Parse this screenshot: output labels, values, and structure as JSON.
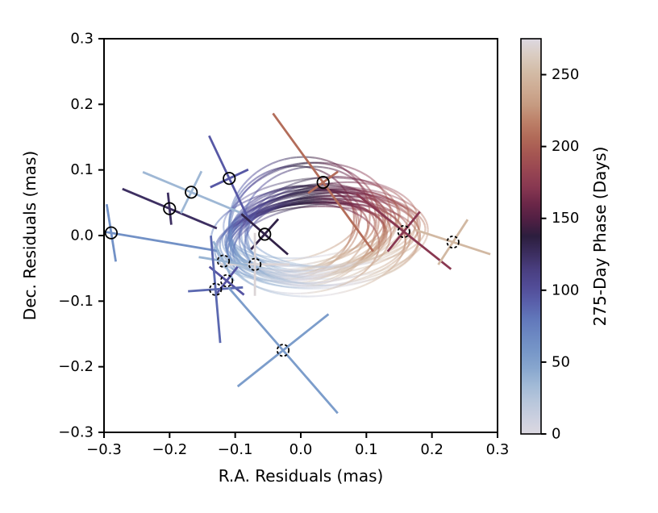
{
  "figure": {
    "background": "#ffffff",
    "axis_color": "#000000"
  },
  "chart_data": {
    "type": "scatter",
    "title": "",
    "xlabel": "R.A. Residuals (mas)",
    "ylabel": "Dec. Residuals (mas)",
    "units": "mas",
    "xlim": [
      -0.3,
      0.3
    ],
    "ylim": [
      -0.3,
      0.3
    ],
    "grid": false,
    "x_ticks": [
      -0.3,
      -0.2,
      -0.1,
      0.0,
      0.1,
      0.2,
      0.3
    ],
    "x_tick_labels": [
      "−0.3",
      "−0.2",
      "−0.1",
      "0.0",
      "0.1",
      "0.2",
      "0.3"
    ],
    "y_ticks": [
      -0.3,
      -0.2,
      -0.1,
      0.0,
      0.1,
      0.2,
      0.3
    ],
    "y_tick_labels": [
      "−0.3",
      "−0.2",
      "−0.1",
      "0.0",
      "0.1",
      "0.2",
      "0.3"
    ],
    "colorbar": {
      "label": "275-Day Phase (Days)",
      "min": 0,
      "max": 275,
      "ticks": [
        0,
        50,
        100,
        150,
        200,
        250
      ],
      "tick_labels": [
        "0",
        "50",
        "100",
        "150",
        "200",
        "250"
      ],
      "colormap": "twilight",
      "stops": [
        [
          0.0,
          "#dcd8e1"
        ],
        [
          0.05,
          "#c6cdde"
        ],
        [
          0.1,
          "#b0c3da"
        ],
        [
          0.14,
          "#97b3d3"
        ],
        [
          0.18,
          "#7fa0cc"
        ],
        [
          0.24,
          "#6e8cc4"
        ],
        [
          0.3,
          "#5f74b8"
        ],
        [
          0.36,
          "#544f9f"
        ],
        [
          0.43,
          "#473a77"
        ],
        [
          0.48,
          "#32234a"
        ],
        [
          0.5,
          "#2c1e3e"
        ],
        [
          0.52,
          "#3d1e42"
        ],
        [
          0.55,
          "#571f43"
        ],
        [
          0.6,
          "#762b4b"
        ],
        [
          0.63,
          "#8c3a52"
        ],
        [
          0.68,
          "#9d4b52"
        ],
        [
          0.73,
          "#ab5f52"
        ],
        [
          0.78,
          "#ba7a62"
        ],
        [
          0.83,
          "#c59a7f"
        ],
        [
          0.88,
          "#cfae96"
        ],
        [
          0.91,
          "#d2b9a3"
        ],
        [
          0.95,
          "#d9cabb"
        ],
        [
          1.0,
          "#dcd8e1"
        ]
      ]
    },
    "points": [
      {
        "ra": -0.289,
        "dec": 0.004,
        "phase_days": 62,
        "marker": "circle-solid",
        "error_axes": [
          {
            "angle_deg_screen": 81,
            "half_len_mas": 0.0443
          },
          {
            "angle_deg_screen": 9.6,
            "half_len_mas": 0.167
          }
        ]
      },
      {
        "ra": -0.2,
        "dec": 0.041,
        "phase_days": 125,
        "marker": "circle-solid",
        "error_axes": [
          {
            "angle_deg_screen": 22.7,
            "half_len_mas": 0.078
          },
          {
            "angle_deg_screen": 84,
            "half_len_mas": 0.0246
          }
        ]
      },
      {
        "ra": -0.167,
        "dec": 0.066,
        "phase_days": 35,
        "marker": "circle-solid",
        "error_axes": [
          {
            "angle_deg_screen": 22.6,
            "half_len_mas": 0.08
          },
          {
            "angle_deg_screen": 116,
            "half_len_mas": 0.0357
          }
        ]
      },
      {
        "ra": -0.109,
        "dec": 0.087,
        "phase_days": 95,
        "marker": "circle-solid",
        "error_axes": [
          {
            "angle_deg_screen": 64.7,
            "half_len_mas": 0.072
          },
          {
            "angle_deg_screen": -25,
            "half_len_mas": 0.032
          }
        ]
      },
      {
        "ra": 0.034,
        "dec": 0.081,
        "phase_days": 208,
        "marker": "circle-solid",
        "error_axes": [
          {
            "angle_deg_screen": 54,
            "half_len_mas": 0.13
          },
          {
            "angle_deg_screen": -36,
            "half_len_mas": 0.028
          }
        ]
      },
      {
        "ra": -0.055,
        "dec": 0.002,
        "phase_days": 133,
        "marker": "circle-solid",
        "error_axes": [
          {
            "angle_deg_screen": 41,
            "half_len_mas": 0.047
          },
          {
            "angle_deg_screen": 132,
            "half_len_mas": 0.031
          }
        ]
      },
      {
        "ra": 0.157,
        "dec": 0.006,
        "phase_days": 172,
        "marker": "circle-dashed",
        "error_axes": [
          {
            "angle_deg_screen": 38.5,
            "half_len_mas": 0.092
          },
          {
            "angle_deg_screen": 129,
            "half_len_mas": 0.039
          }
        ]
      },
      {
        "ra": 0.232,
        "dec": -0.01,
        "phase_days": 250,
        "marker": "circle-dashed",
        "error_axes": [
          {
            "angle_deg_screen": 123,
            "half_len_mas": 0.041
          },
          {
            "angle_deg_screen": 18,
            "half_len_mas": 0.06
          }
        ]
      },
      {
        "ra": -0.07,
        "dec": -0.044,
        "phase_days": 271,
        "marker": "circle-dashed",
        "error_axes": [
          {
            "angle_deg_screen": 90,
            "half_len_mas": 0.048
          },
          {
            "angle_deg_screen": 0,
            "half_len_mas": 0.053
          }
        ]
      },
      {
        "ra": -0.118,
        "dec": -0.039,
        "phase_days": 38,
        "marker": "circle-dashed",
        "error_axes": [
          {
            "angle_deg_screen": 9.3,
            "half_len_mas": 0.038
          },
          {
            "angle_deg_screen": 63,
            "half_len_mas": 0.034
          }
        ]
      },
      {
        "ra": -0.113,
        "dec": -0.069,
        "phase_days": 97,
        "marker": "circle-dashed",
        "error_axes": [
          {
            "angle_deg_screen": 39,
            "half_len_mas": 0.034
          },
          {
            "angle_deg_screen": 128,
            "half_len_mas": 0.027
          }
        ]
      },
      {
        "ra": -0.13,
        "dec": -0.082,
        "phase_days": 88,
        "marker": "circle-dashed",
        "error_axes": [
          {
            "angle_deg_screen": 85,
            "half_len_mas": 0.082
          },
          {
            "angle_deg_screen": -4,
            "half_len_mas": 0.042
          }
        ]
      },
      {
        "ra": -0.027,
        "dec": -0.175,
        "phase_days": 52,
        "marker": "circle-dashed",
        "error_axes": [
          {
            "angle_deg_screen": 49,
            "half_len_mas": 0.127
          },
          {
            "angle_deg_screen": -38.5,
            "half_len_mas": 0.0885
          }
        ]
      }
    ],
    "orbit_samples_note": "posterior orbit ellipses, colored cyclically by 275-day phase; params: [cx, cy, semi_major, semi_minor, rot_deg, phase_offset, opacity]",
    "orbit_samples": [
      [
        0.018,
        0.008,
        0.128,
        0.06,
        8,
        0.74,
        0.55
      ],
      [
        -0.008,
        0.016,
        0.102,
        0.052,
        13,
        0.69,
        0.5
      ],
      [
        0.034,
        -0.008,
        0.148,
        0.068,
        4,
        0.78,
        0.5
      ],
      [
        0.01,
        0.001,
        0.118,
        0.066,
        10,
        0.72,
        0.6
      ],
      [
        0.048,
        0.006,
        0.142,
        0.054,
        2,
        0.8,
        0.45
      ],
      [
        -0.014,
        0.02,
        0.096,
        0.085,
        16,
        0.68,
        0.55
      ],
      [
        0.026,
        -0.018,
        0.134,
        0.074,
        6,
        0.76,
        0.5
      ],
      [
        0.002,
        0.004,
        0.112,
        0.048,
        9,
        0.73,
        0.6
      ],
      [
        0.04,
        0.014,
        0.126,
        0.064,
        11,
        0.77,
        0.45
      ],
      [
        0.016,
        -0.014,
        0.144,
        0.058,
        3,
        0.79,
        0.5
      ],
      [
        -0.002,
        0.024,
        0.108,
        0.095,
        14,
        0.7,
        0.5
      ],
      [
        0.03,
        0.002,
        0.15,
        0.062,
        5,
        0.75,
        0.45
      ],
      [
        0.008,
        -0.006,
        0.122,
        0.056,
        7,
        0.74,
        0.6
      ],
      [
        0.044,
        -0.004,
        0.138,
        0.072,
        1,
        0.81,
        0.45
      ],
      [
        -0.012,
        0.01,
        0.098,
        0.064,
        12,
        0.71,
        0.55
      ],
      [
        0.022,
        0.018,
        0.13,
        0.05,
        8,
        0.76,
        0.5
      ],
      [
        0.004,
        -0.02,
        0.116,
        0.068,
        5,
        0.73,
        0.55
      ],
      [
        0.036,
        0.01,
        0.146,
        0.056,
        3,
        0.78,
        0.45
      ],
      [
        0.012,
        0.014,
        0.104,
        0.09,
        15,
        0.7,
        0.5
      ],
      [
        0.028,
        -0.012,
        0.14,
        0.066,
        6,
        0.77,
        0.5
      ],
      [
        -0.006,
        0.0,
        0.11,
        0.054,
        11,
        0.72,
        0.6
      ],
      [
        0.042,
        0.004,
        0.152,
        0.07,
        2,
        0.79,
        0.4
      ],
      [
        0.014,
        0.022,
        0.124,
        0.088,
        9,
        0.74,
        0.45
      ],
      [
        0.0,
        -0.01,
        0.132,
        0.058,
        7,
        0.75,
        0.55
      ],
      [
        0.032,
        0.016,
        0.118,
        0.072,
        10,
        0.76,
        0.45
      ],
      [
        0.02,
        -0.002,
        0.136,
        0.052,
        4,
        0.77,
        0.55
      ],
      [
        -0.01,
        0.006,
        0.1,
        0.066,
        13,
        0.7,
        0.5
      ],
      [
        0.046,
        0.012,
        0.128,
        0.06,
        1,
        0.8,
        0.45
      ],
      [
        0.006,
        0.018,
        0.114,
        0.092,
        12,
        0.72,
        0.5
      ],
      [
        0.038,
        -0.016,
        0.142,
        0.064,
        5,
        0.78,
        0.45
      ],
      [
        0.024,
        0.008,
        0.106,
        0.07,
        8,
        0.75,
        0.5
      ],
      [
        0.002,
        -0.004,
        0.126,
        0.054,
        6,
        0.73,
        0.6
      ],
      [
        0.03,
        0.02,
        0.148,
        0.068,
        3,
        0.77,
        0.4
      ],
      [
        0.016,
        0.002,
        0.12,
        0.058,
        14,
        0.74,
        0.55
      ],
      [
        -0.004,
        0.012,
        0.134,
        0.062,
        9,
        0.71,
        0.5
      ],
      [
        0.026,
        -0.006,
        0.112,
        0.066,
        7,
        0.76,
        0.55
      ]
    ]
  }
}
